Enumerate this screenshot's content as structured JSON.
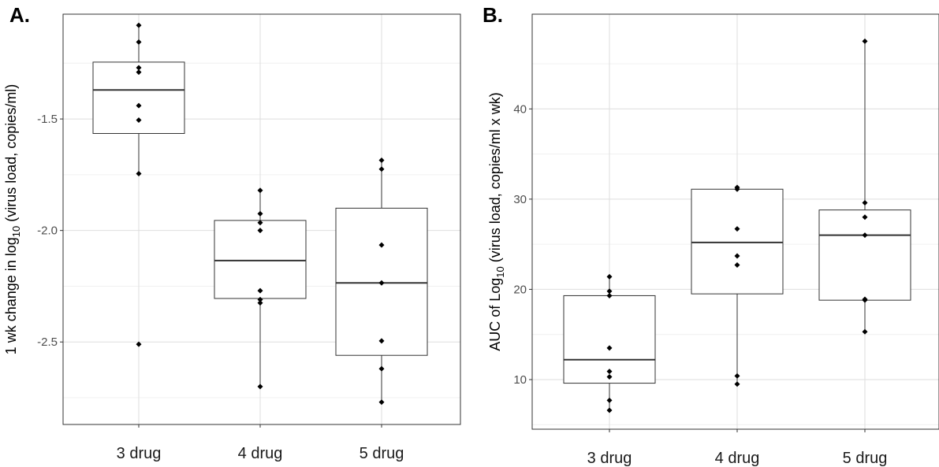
{
  "chart_data": [
    {
      "type": "boxplot",
      "panel": "A.",
      "ylabel": {
        "prefix": "1 wk change in log",
        "sub": "10",
        "suffix": " (virus load, copies/ml)"
      },
      "ylim": [
        -2.87,
        -1.03
      ],
      "yticks": [
        -1.5,
        -2.0,
        -2.5
      ],
      "ytick_labels": [
        "-1.5",
        "-2.0",
        "-2.5"
      ],
      "grid": true,
      "categories": [
        "3 drug",
        "4 drug",
        "5 drug"
      ],
      "boxes": [
        {
          "q1": -1.565,
          "median": -1.37,
          "q3": -1.245,
          "whisker_low": -1.745,
          "whisker_high": -1.08
        },
        {
          "q1": -2.305,
          "median": -2.135,
          "q3": -1.955,
          "whisker_low": -2.7,
          "whisker_high": -1.82
        },
        {
          "q1": -2.56,
          "median": -2.235,
          "q3": -1.9,
          "whisker_low": -2.77,
          "whisker_high": -1.685
        }
      ],
      "points": [
        [
          -1.08,
          -1.155,
          -1.27,
          -1.29,
          -1.44,
          -1.505,
          -1.745,
          -2.51
        ],
        [
          -1.82,
          -1.925,
          -1.965,
          -2.0,
          -2.27,
          -2.31,
          -2.325,
          -2.7
        ],
        [
          -1.685,
          -1.725,
          -2.065,
          -2.235,
          -2.495,
          -2.62,
          -2.77
        ]
      ]
    },
    {
      "type": "boxplot",
      "panel": "B.",
      "ylabel": {
        "prefix": "AUC of Log",
        "sub": "10",
        "suffix": " (virus load, copies/ml x wk)"
      },
      "ylim": [
        4.5,
        50.5
      ],
      "yticks": [
        10,
        20,
        30,
        40
      ],
      "ytick_labels": [
        "10",
        "20",
        "30",
        "40"
      ],
      "grid": true,
      "categories": [
        "3 drug",
        "4 drug",
        "5 drug"
      ],
      "boxes": [
        {
          "q1": 9.6,
          "median": 12.2,
          "q3": 19.3,
          "whisker_low": 6.6,
          "whisker_high": 21.4
        },
        {
          "q1": 19.5,
          "median": 25.2,
          "q3": 31.1,
          "whisker_low": 9.5,
          "whisker_high": 31.3
        },
        {
          "q1": 18.8,
          "median": 26.0,
          "q3": 28.8,
          "whisker_low": 15.3,
          "whisker_high": 47.5
        }
      ],
      "points": [
        [
          21.4,
          19.8,
          19.3,
          13.5,
          10.9,
          10.3,
          7.7,
          6.6
        ],
        [
          31.3,
          31.1,
          26.7,
          23.7,
          22.7,
          10.4,
          9.5
        ],
        [
          47.5,
          29.6,
          28.0,
          26.0,
          18.9,
          18.8,
          15.3
        ]
      ]
    }
  ]
}
